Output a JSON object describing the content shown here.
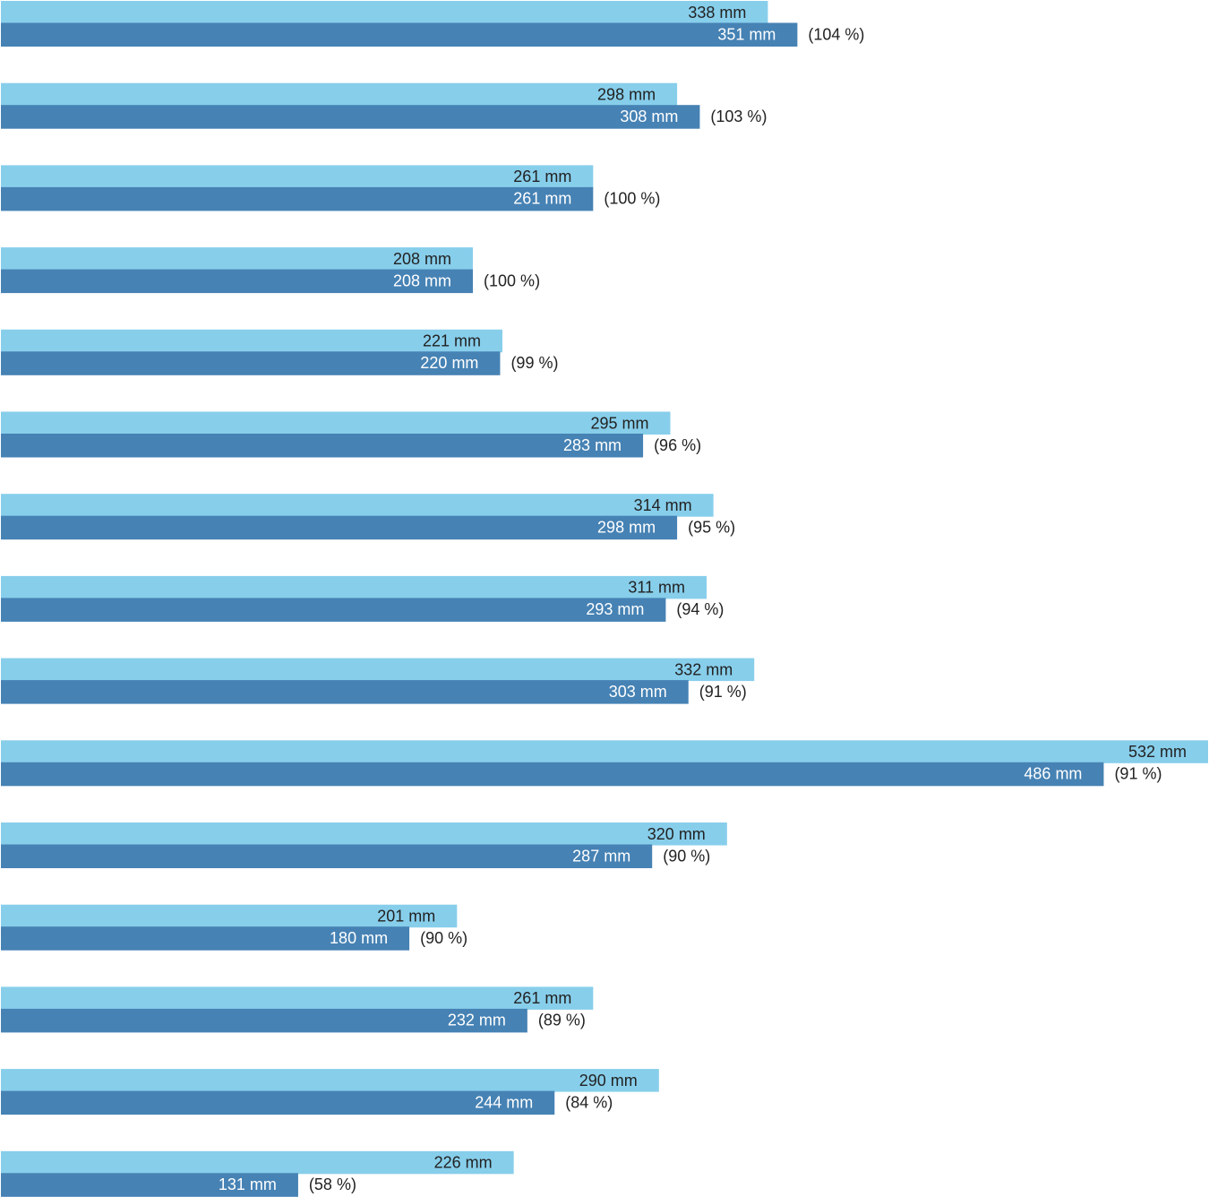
{
  "chart_data": {
    "type": "bar",
    "orientation": "horizontal",
    "unit": "mm",
    "colors": {
      "light_series": "#87ceeb",
      "dark_series": "#4682b4",
      "label_dark": "#222222",
      "label_light": "#ffffff"
    },
    "series_light": [
      338,
      298,
      261,
      208,
      221,
      295,
      314,
      311,
      332,
      532,
      320,
      201,
      261,
      290,
      226
    ],
    "series_dark": [
      351,
      308,
      261,
      208,
      220,
      283,
      298,
      293,
      303,
      486,
      287,
      180,
      232,
      244,
      131
    ],
    "light_labels": [
      "338 mm",
      "298 mm",
      "261 mm",
      "208 mm",
      "221 mm",
      "295 mm",
      "314 mm",
      "311 mm",
      "332 mm",
      "532 mm",
      "320 mm",
      "201 mm",
      "261 mm",
      "290 mm",
      "226 mm"
    ],
    "dark_labels": [
      "351 mm",
      "308 mm",
      "261 mm",
      "208 mm",
      "220 mm",
      "283 mm",
      "298 mm",
      "293 mm",
      "303 mm",
      "486 mm",
      "287 mm",
      "180 mm",
      "232 mm",
      "244 mm",
      "131 mm"
    ],
    "percent_labels": [
      "(104 %)",
      "(103 %)",
      "(100 %)",
      "(100 %)",
      "(99 %)",
      "(96 %)",
      "(95 %)",
      "(94 %)",
      "(91 %)",
      "(91 %)",
      "(90 %)",
      "(90 %)",
      "(89 %)",
      "(84 %)",
      "(58 %)"
    ],
    "xlim": [
      0,
      532
    ],
    "grid": false,
    "legend": "none"
  }
}
